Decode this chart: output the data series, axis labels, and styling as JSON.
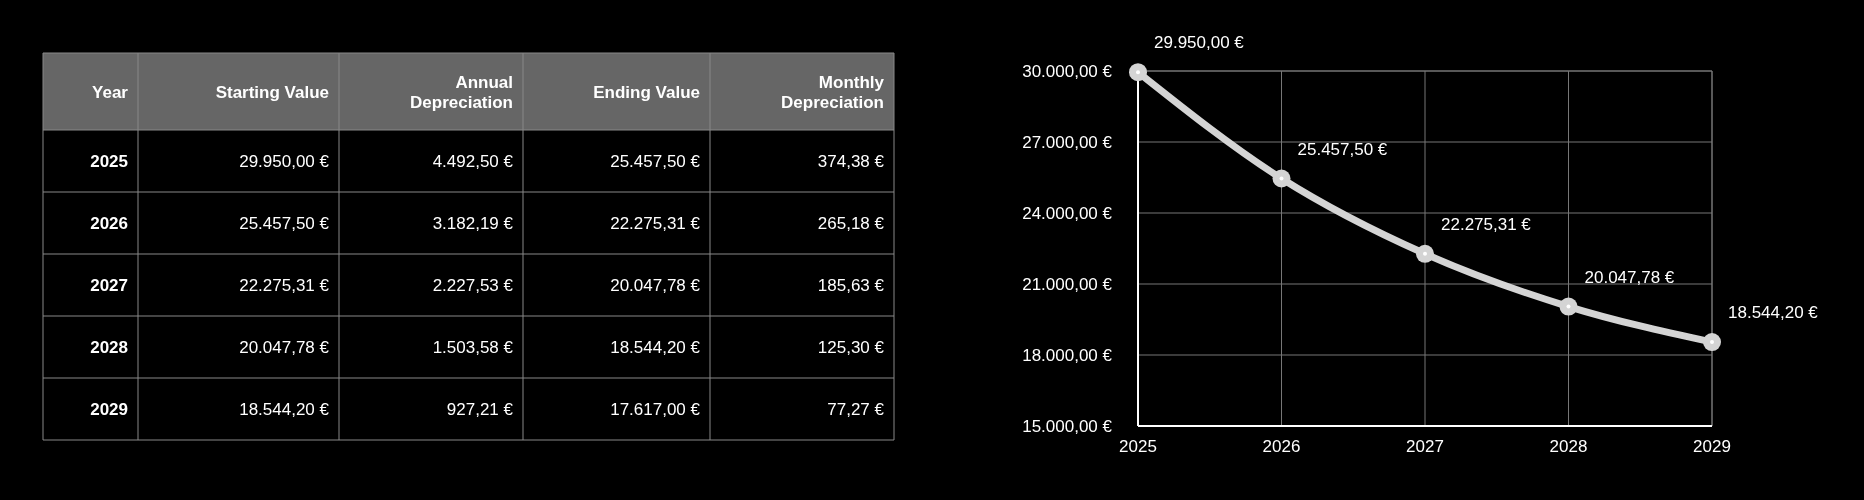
{
  "chart_data": [
    {
      "type": "heatmap",
      "ylabel": "Year",
      "categories": [
        "Starting Value",
        "Annual Depreciation",
        "Ending Value",
        "Monthly Depreciation"
      ],
      "y_categories": [
        "2025",
        "2026",
        "2027",
        "2028",
        "2029"
      ],
      "cells": [
        [
          29950,
          4492.5,
          25457.5,
          374.38
        ],
        [
          25457.5,
          3182.19,
          22275.31,
          265.18
        ],
        [
          22275.31,
          2227.53,
          20047.78,
          185.63
        ],
        [
          20047.78,
          1503.58,
          18544.2,
          125.3
        ],
        [
          18544.2,
          927.21,
          17617,
          77.27
        ]
      ],
      "cell_labels": [
        [
          "29.950,00 €",
          "4.492,50 €",
          "25.457,50 €",
          "374,38 €"
        ],
        [
          "25.457,50 €",
          "3.182,19 €",
          "22.275,31 €",
          "265,18 €"
        ],
        [
          "22.275,31 €",
          "2.227,53 €",
          "20.047,78 €",
          "185,63 €"
        ],
        [
          "20.047,78 €",
          "1.503,58 €",
          "18.544,20 €",
          "125,30 €"
        ],
        [
          "18.544,20 €",
          "927,21 €",
          "17.617,00 €",
          "77,27 €"
        ]
      ]
    },
    {
      "type": "line",
      "x": [
        2025,
        2026,
        2027,
        2028,
        2029
      ],
      "xlim": [
        2025,
        2029
      ],
      "xticks": [
        2025,
        2026,
        2027,
        2028,
        2029
      ],
      "ylim": [
        15000,
        30000
      ],
      "yticks": [
        {
          "value": 15000,
          "label": "15.000,00 €"
        },
        {
          "value": 18000,
          "label": "18.000,00 €"
        },
        {
          "value": 21000,
          "label": "21.000,00 €"
        },
        {
          "value": 24000,
          "label": "24.000,00 €"
        },
        {
          "value": 27000,
          "label": "27.000,00 €"
        },
        {
          "value": 30000,
          "label": "30.000,00 €"
        }
      ],
      "grid": true,
      "marker": "circle",
      "line_style": "solid",
      "series": [
        {
          "color": "#d4d4d4",
          "values": [
            29950,
            25457.5,
            22275.31,
            20047.78,
            18544.2
          ],
          "value_labels": [
            "29.950,00 €",
            "25.457,50 €",
            "22.275,31 €",
            "20.047,78 €",
            "18.544,20 €"
          ]
        }
      ]
    }
  ]
}
